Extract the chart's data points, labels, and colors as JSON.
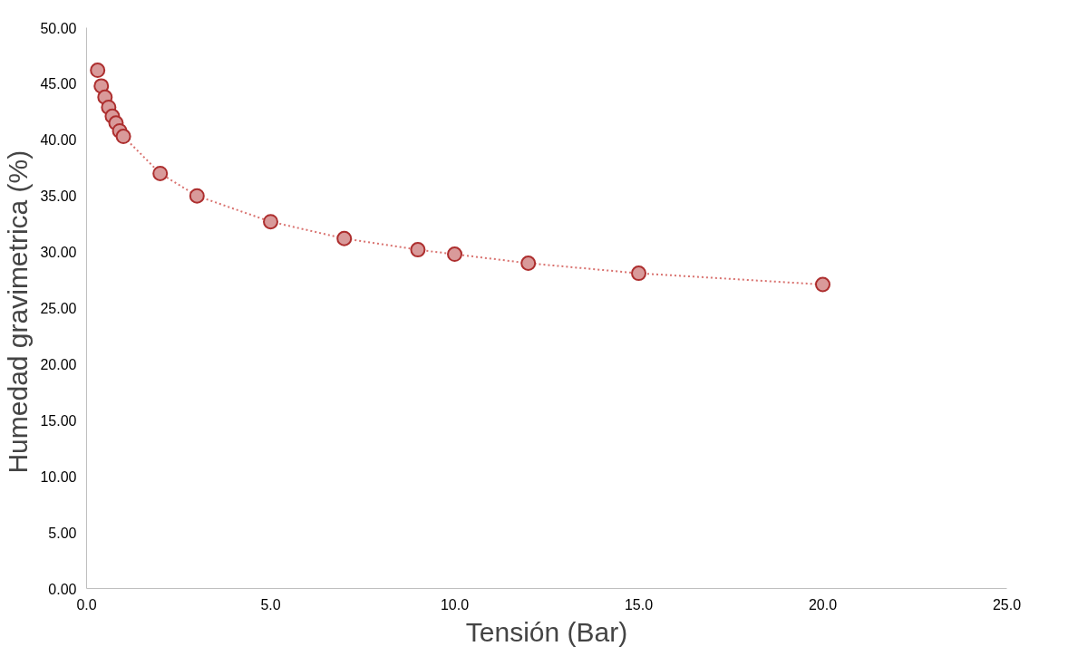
{
  "chart_data": {
    "type": "scatter",
    "xlabel": "Tensión (Bar)",
    "ylabel": "Humedad gravimetrica  (%)",
    "xlim": [
      0,
      25
    ],
    "xticks": [
      {
        "value": 0,
        "label": "0.0"
      },
      {
        "value": 5,
        "label": "5.0"
      },
      {
        "value": 10,
        "label": "10.0"
      },
      {
        "value": 15,
        "label": "15.0"
      },
      {
        "value": 20,
        "label": "20.0"
      },
      {
        "value": 25,
        "label": "25.0"
      }
    ],
    "ylim": [
      0,
      50
    ],
    "yticks": [
      {
        "value": 0,
        "label": "0.00"
      },
      {
        "value": 5,
        "label": "5.00"
      },
      {
        "value": 10,
        "label": "10.00"
      },
      {
        "value": 15,
        "label": "15.00"
      },
      {
        "value": 20,
        "label": "20.00"
      },
      {
        "value": 25,
        "label": "25.00"
      },
      {
        "value": 30,
        "label": "30.00"
      },
      {
        "value": 35,
        "label": "35.00"
      },
      {
        "value": 40,
        "label": "40.00"
      },
      {
        "value": 45,
        "label": "45.00"
      },
      {
        "value": 50,
        "label": "50.00"
      }
    ],
    "grid": false,
    "series": [
      {
        "type": "line",
        "line_style": "dotted",
        "marker": "none",
        "color": "#d9726f",
        "x": [
          0.3,
          0.4,
          0.5,
          0.6,
          0.7,
          0.8,
          0.9,
          1.0,
          2,
          3,
          5,
          7,
          9,
          10,
          12,
          15,
          20
        ],
        "values": [
          46.2,
          44.8,
          43.8,
          42.9,
          42.1,
          41.5,
          40.8,
          40.3,
          37.0,
          35.0,
          32.7,
          31.2,
          30.2,
          29.8,
          29.0,
          28.1,
          27.1
        ]
      },
      {
        "marker": "circle",
        "color": "#d99a9a",
        "x": [
          0.3,
          0.4,
          0.5,
          0.6,
          0.7,
          0.8,
          0.9,
          1.0,
          2,
          3,
          5,
          7,
          9,
          10,
          12,
          15,
          20
        ],
        "values": [
          46.2,
          44.8,
          43.8,
          42.9,
          42.1,
          41.5,
          40.8,
          40.3,
          37.0,
          35.0,
          32.7,
          31.2,
          30.2,
          29.8,
          29.0,
          28.1,
          27.1
        ]
      }
    ]
  }
}
